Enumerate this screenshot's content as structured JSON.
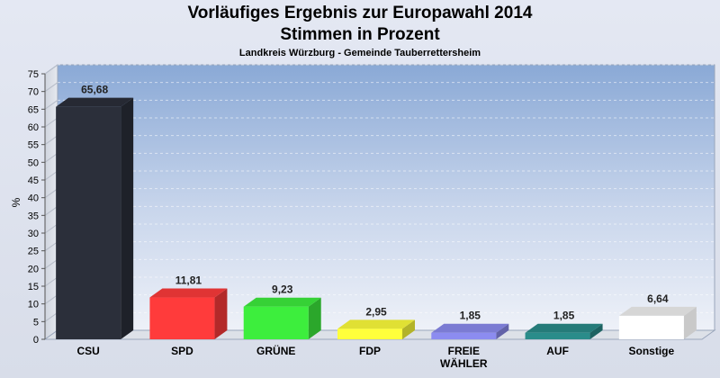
{
  "header": {
    "title": "Vorläufiges Ergebnis zur Europawahl 2014",
    "subtitle": "Stimmen in Prozent",
    "location": "Landkreis Würzburg - Gemeinde Tauberrettersheim"
  },
  "chart_data": {
    "type": "bar",
    "title": "Vorläufiges Ergebnis zur Europawahl 2014",
    "subtitle": "Stimmen in Prozent",
    "xlabel": "",
    "ylabel": "%",
    "ylim": [
      0,
      75
    ],
    "yticks": [
      0,
      5,
      10,
      15,
      20,
      25,
      30,
      35,
      40,
      45,
      50,
      55,
      60,
      65,
      70,
      75
    ],
    "grid": true,
    "categories": [
      "CSU",
      "SPD",
      "GRÜNE",
      "FDP",
      "FREIE WÄHLER",
      "AUF",
      "Sonstige"
    ],
    "category_lines": [
      [
        "CSU"
      ],
      [
        "SPD"
      ],
      [
        "GRÜNE"
      ],
      [
        "FDP"
      ],
      [
        "FREIE",
        "WÄHLER"
      ],
      [
        "AUF"
      ],
      [
        "Sonstige"
      ]
    ],
    "values": [
      65.68,
      11.81,
      9.23,
      2.95,
      1.85,
      1.85,
      6.64
    ],
    "value_labels": [
      "65,68",
      "11,81",
      "9,23",
      "2,95",
      "1,85",
      "1,85",
      "6,64"
    ],
    "colors": [
      "#2b2f3a",
      "#ff3b3b",
      "#3dee3d",
      "#ffff3b",
      "#8c8cf0",
      "#2a8c8a",
      "#ffffff"
    ]
  }
}
